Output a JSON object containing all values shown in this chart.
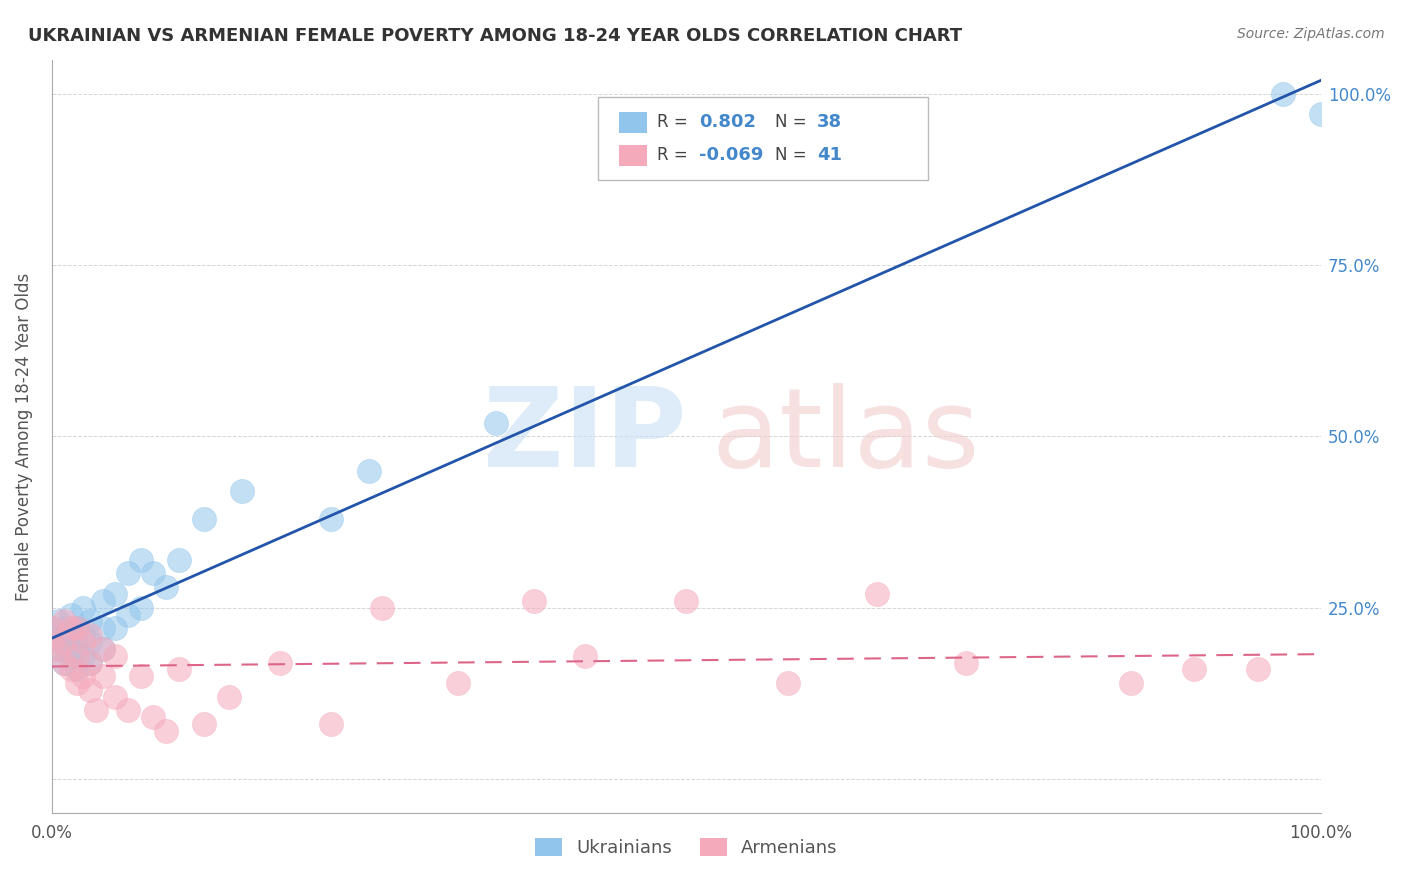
{
  "title": "UKRAINIAN VS ARMENIAN FEMALE POVERTY AMONG 18-24 YEAR OLDS CORRELATION CHART",
  "source": "Source: ZipAtlas.com",
  "ylabel": "Female Poverty Among 18-24 Year Olds",
  "xlim": [
    0.0,
    1.0
  ],
  "ylim": [
    -0.05,
    1.05
  ],
  "ytick_vals": [
    0.0,
    0.25,
    0.5,
    0.75,
    1.0
  ],
  "ytick_labels_right": [
    "",
    "25.0%",
    "50.0%",
    "75.0%",
    "100.0%"
  ],
  "xtick_vals": [
    0.0,
    1.0
  ],
  "xtick_labels": [
    "0.0%",
    "100.0%"
  ],
  "legend_r_ukrainian": "0.802",
  "legend_n_ukrainian": "38",
  "legend_r_armenian": "-0.069",
  "legend_n_armenian": "41",
  "ukrainian_color": "#92C5EC",
  "armenian_color": "#F5AABB",
  "ukrainian_line_color": "#2255AA",
  "armenian_line_color": "#DD6688",
  "grid_color": "#CCCCCC",
  "background_color": "#FFFFFF",
  "ukr_x": [
    0.0,
    0.0,
    0.005,
    0.005,
    0.01,
    0.01,
    0.01,
    0.015,
    0.015,
    0.015,
    0.02,
    0.02,
    0.02,
    0.025,
    0.025,
    0.025,
    0.03,
    0.03,
    0.03,
    0.04,
    0.04,
    0.04,
    0.05,
    0.05,
    0.06,
    0.06,
    0.07,
    0.07,
    0.08,
    0.09,
    0.1,
    0.12,
    0.15,
    0.22,
    0.25,
    0.35,
    0.97,
    1.0
  ],
  "ukr_y": [
    0.2,
    0.22,
    0.19,
    0.23,
    0.17,
    0.2,
    0.22,
    0.18,
    0.21,
    0.24,
    0.16,
    0.19,
    0.22,
    0.18,
    0.21,
    0.25,
    0.17,
    0.2,
    0.23,
    0.19,
    0.22,
    0.26,
    0.22,
    0.27,
    0.24,
    0.3,
    0.25,
    0.32,
    0.3,
    0.28,
    0.32,
    0.38,
    0.42,
    0.38,
    0.45,
    0.52,
    1.0,
    0.97
  ],
  "arm_x": [
    0.0,
    0.0,
    0.005,
    0.01,
    0.01,
    0.01,
    0.015,
    0.015,
    0.02,
    0.02,
    0.02,
    0.025,
    0.025,
    0.03,
    0.03,
    0.03,
    0.035,
    0.04,
    0.04,
    0.05,
    0.05,
    0.06,
    0.07,
    0.08,
    0.09,
    0.1,
    0.12,
    0.14,
    0.18,
    0.22,
    0.26,
    0.32,
    0.38,
    0.42,
    0.5,
    0.58,
    0.65,
    0.72,
    0.85,
    0.9,
    0.95
  ],
  "arm_y": [
    0.2,
    0.22,
    0.19,
    0.17,
    0.2,
    0.23,
    0.16,
    0.22,
    0.14,
    0.18,
    0.22,
    0.15,
    0.2,
    0.13,
    0.17,
    0.21,
    0.1,
    0.15,
    0.19,
    0.12,
    0.18,
    0.1,
    0.15,
    0.09,
    0.07,
    0.16,
    0.08,
    0.12,
    0.17,
    0.08,
    0.25,
    0.14,
    0.26,
    0.18,
    0.26,
    0.14,
    0.27,
    0.17,
    0.14,
    0.16,
    0.16
  ]
}
